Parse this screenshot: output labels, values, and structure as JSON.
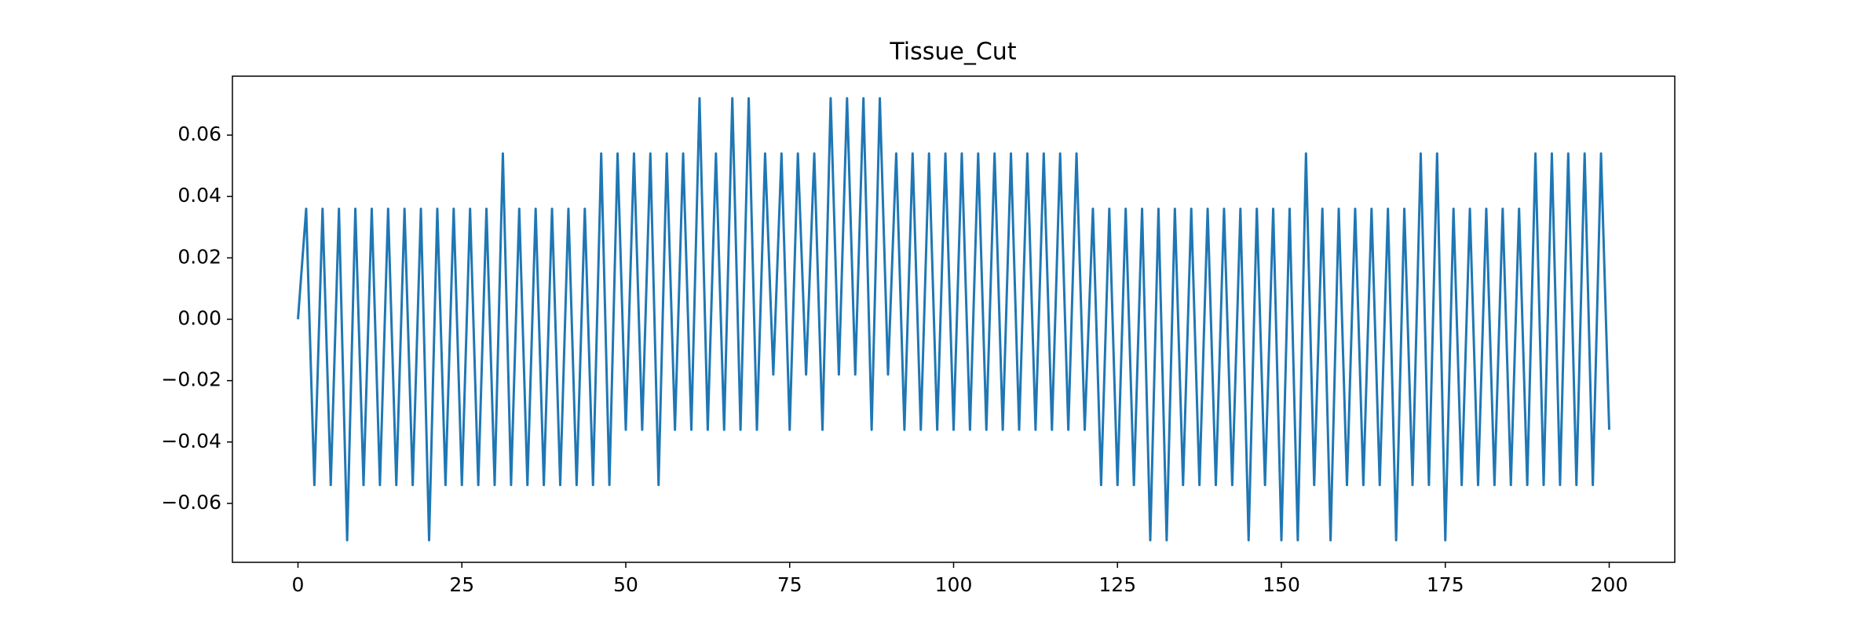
{
  "chart_data": {
    "type": "line",
    "title": "Tissue_Cut",
    "x": [
      0,
      1.25,
      2.5,
      3.75,
      5,
      6.25,
      7.5,
      8.75,
      10,
      11.25,
      12.5,
      13.75,
      15,
      16.25,
      17.5,
      18.75,
      20,
      21.25,
      22.5,
      23.75,
      25,
      26.25,
      27.5,
      28.75,
      30,
      31.25,
      32.5,
      33.75,
      35,
      36.25,
      37.5,
      38.75,
      40,
      41.25,
      42.5,
      43.75,
      45,
      46.25,
      47.5,
      48.75,
      50,
      51.25,
      52.5,
      53.75,
      55,
      56.25,
      57.5,
      58.75,
      60,
      61.25,
      62.5,
      63.75,
      65,
      66.25,
      67.5,
      68.75,
      70,
      71.25,
      72.5,
      73.75,
      75,
      76.25,
      77.5,
      78.75,
      80,
      81.25,
      82.5,
      83.75,
      85,
      86.25,
      87.5,
      88.75,
      90,
      91.25,
      92.5,
      93.75,
      95,
      96.25,
      97.5,
      98.75,
      100,
      101.25,
      102.5,
      103.75,
      105,
      106.25,
      107.5,
      108.75,
      110,
      111.25,
      112.5,
      113.75,
      115,
      116.25,
      117.5,
      118.75,
      120,
      121.25,
      122.5,
      123.75,
      125,
      126.25,
      127.5,
      128.75,
      130,
      131.25,
      132.5,
      133.75,
      135,
      136.25,
      137.5,
      138.75,
      140,
      141.25,
      142.5,
      143.75,
      145,
      146.25,
      147.5,
      148.75,
      150,
      151.25,
      152.5,
      153.75,
      155,
      156.25,
      157.5,
      158.75,
      160,
      161.25,
      162.5,
      163.75,
      165,
      166.25,
      167.5,
      168.75,
      170,
      171.25,
      172.5,
      173.75,
      175,
      176.25,
      177.5,
      178.75,
      180,
      181.25,
      182.5,
      183.75,
      185,
      186.25,
      187.5,
      188.75,
      190,
      191.25,
      192.5,
      193.75,
      195,
      196.25,
      197.5,
      198.75,
      200
    ],
    "series": [
      {
        "color": "#1f77b4",
        "values": [
          0,
          0.036,
          -0.054,
          0.036,
          -0.054,
          0.036,
          -0.072,
          0.036,
          -0.054,
          0.036,
          -0.054,
          0.036,
          -0.054,
          0.036,
          -0.054,
          0.036,
          -0.072,
          0.036,
          -0.054,
          0.036,
          -0.054,
          0.036,
          -0.054,
          0.036,
          -0.054,
          0.054,
          -0.054,
          0.036,
          -0.054,
          0.036,
          -0.054,
          0.036,
          -0.054,
          0.036,
          -0.054,
          0.036,
          -0.054,
          0.054,
          -0.054,
          0.054,
          -0.036,
          0.054,
          -0.036,
          0.054,
          -0.054,
          0.054,
          -0.036,
          0.054,
          -0.036,
          0.072,
          -0.036,
          0.054,
          -0.036,
          0.072,
          -0.036,
          0.072,
          -0.036,
          0.054,
          -0.018,
          0.054,
          -0.036,
          0.054,
          -0.018,
          0.054,
          -0.036,
          0.072,
          -0.018,
          0.072,
          -0.018,
          0.072,
          -0.036,
          0.072,
          -0.018,
          0.054,
          -0.036,
          0.054,
          -0.036,
          0.054,
          -0.036,
          0.054,
          -0.036,
          0.054,
          -0.036,
          0.054,
          -0.036,
          0.054,
          -0.036,
          0.054,
          -0.036,
          0.054,
          -0.036,
          0.054,
          -0.036,
          0.054,
          -0.036,
          0.054,
          -0.036,
          0.036,
          -0.054,
          0.036,
          -0.054,
          0.036,
          -0.054,
          0.036,
          -0.072,
          0.036,
          -0.072,
          0.036,
          -0.054,
          0.036,
          -0.054,
          0.036,
          -0.054,
          0.036,
          -0.054,
          0.036,
          -0.072,
          0.036,
          -0.054,
          0.036,
          -0.072,
          0.036,
          -0.072,
          0.054,
          -0.054,
          0.036,
          -0.072,
          0.036,
          -0.054,
          0.036,
          -0.054,
          0.036,
          -0.054,
          0.036,
          -0.072,
          0.036,
          -0.054,
          0.054,
          -0.054,
          0.054,
          -0.072,
          0.036,
          -0.054,
          0.036,
          -0.054,
          0.036,
          -0.054,
          0.036,
          -0.054,
          0.036,
          -0.054,
          0.054,
          -0.054,
          0.054,
          -0.054,
          0.054,
          -0.054,
          0.054,
          -0.054,
          0.054,
          -0.036
        ]
      }
    ],
    "xlim": [
      -10,
      210
    ],
    "xticks": [
      0,
      25,
      50,
      75,
      100,
      125,
      150,
      175,
      200
    ],
    "ylim": [
      -0.0792,
      0.0792
    ],
    "yticks": [
      {
        "value": -0.06,
        "label": "−0.06"
      },
      {
        "value": -0.04,
        "label": "−0.04"
      },
      {
        "value": -0.02,
        "label": "−0.02"
      },
      {
        "value": 0,
        "label": "0.00"
      },
      0.02,
      0.04,
      0.06
    ]
  }
}
